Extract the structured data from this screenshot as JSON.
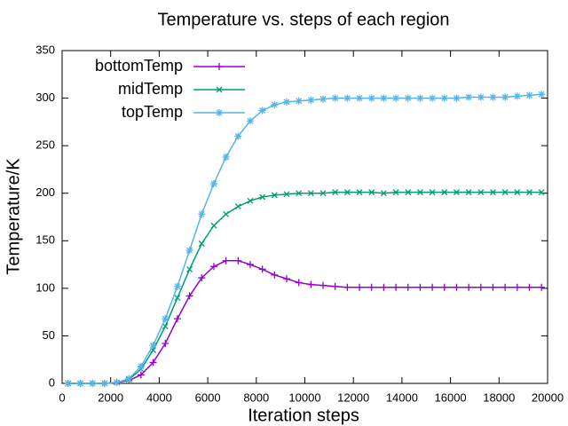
{
  "chart_data": {
    "type": "line",
    "title": "Temperature vs. steps of each region",
    "xlabel": "Iteration steps",
    "ylabel": "Temperature/K",
    "x": [
      250,
      750,
      1250,
      1750,
      2250,
      2750,
      3250,
      3750,
      4250,
      4750,
      5250,
      5750,
      6250,
      6750,
      7250,
      7750,
      8250,
      8750,
      9250,
      9750,
      10250,
      10750,
      11250,
      11750,
      12250,
      12750,
      13250,
      13750,
      14250,
      14750,
      15250,
      15750,
      16250,
      16750,
      17250,
      17750,
      18250,
      18750,
      19250,
      19750
    ],
    "series": [
      {
        "name": "bottomTemp",
        "color": "#9400d3",
        "marker": "plus",
        "values": [
          0,
          0,
          0,
          0,
          1,
          3,
          9,
          22,
          42,
          68,
          92,
          111,
          123,
          129,
          129,
          125,
          120,
          114,
          110,
          106,
          104,
          103,
          102,
          101,
          101,
          101,
          101,
          101,
          101,
          101,
          101,
          101,
          101,
          101,
          101,
          101,
          101,
          101,
          101,
          101
        ]
      },
      {
        "name": "midTemp",
        "color": "#009e73",
        "marker": "cross",
        "values": [
          0,
          0,
          0,
          0,
          1,
          4,
          15,
          35,
          60,
          90,
          120,
          147,
          166,
          178,
          186,
          192,
          196,
          198,
          199,
          200,
          200,
          200,
          201,
          201,
          201,
          201,
          200,
          201,
          201,
          201,
          201,
          201,
          201,
          201,
          201,
          201,
          201,
          201,
          201,
          201
        ]
      },
      {
        "name": "topTemp",
        "color": "#56b4e9",
        "marker": "star",
        "values": [
          0,
          0,
          0,
          0,
          1,
          5,
          18,
          40,
          68,
          102,
          140,
          178,
          210,
          238,
          260,
          276,
          287,
          293,
          296,
          297,
          298,
          299,
          300,
          300,
          300,
          300,
          300,
          300,
          300,
          300,
          300,
          300,
          300,
          301,
          301,
          301,
          301,
          302,
          303,
          304
        ]
      }
    ],
    "xlim": [
      0,
      20000
    ],
    "xticks": [
      0,
      2000,
      4000,
      6000,
      8000,
      10000,
      12000,
      14000,
      16000,
      18000,
      20000
    ],
    "ylim": [
      0,
      350
    ],
    "yticks": [
      0,
      50,
      100,
      150,
      200,
      250,
      300,
      350
    ],
    "legend": "upper-left"
  }
}
